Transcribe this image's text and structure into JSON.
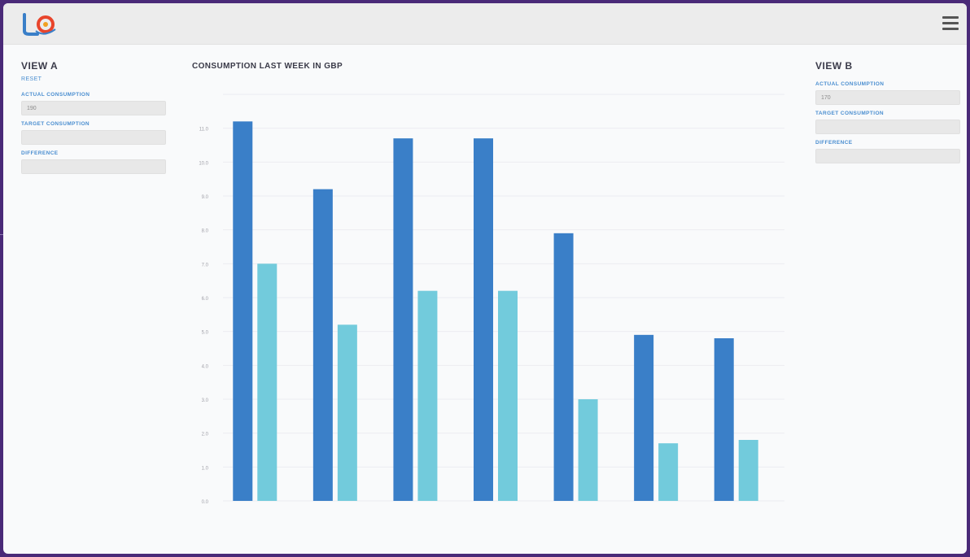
{
  "header": {
    "logo_text": "LOGO"
  },
  "left_panel": {
    "title": "VIEW A",
    "link": "RESET",
    "fields": [
      {
        "label": "ACTUAL CONSUMPTION",
        "value": "190"
      },
      {
        "label": "TARGET CONSUMPTION",
        "value": ""
      },
      {
        "label": "DIFFERENCE",
        "value": ""
      }
    ]
  },
  "right_panel": {
    "title": "VIEW B",
    "link": "",
    "fields": [
      {
        "label": "ACTUAL CONSUMPTION",
        "value": "170"
      },
      {
        "label": "TARGET CONSUMPTION",
        "value": ""
      },
      {
        "label": "DIFFERENCE",
        "value": ""
      }
    ]
  },
  "chart_data": {
    "type": "bar",
    "title": "CONSUMPTION LAST WEEK IN GBP",
    "subtitle": "",
    "categories": [
      "",
      "",
      "",
      "",
      "",
      "",
      ""
    ],
    "ylim": [
      0,
      12
    ],
    "yticks": [
      0,
      1,
      2,
      3,
      4,
      5,
      6,
      7,
      8,
      9,
      10,
      11,
      12
    ],
    "ytick_labels": [
      "0.0",
      "1.0",
      "2.0",
      "3.0",
      "4.0",
      "5.0",
      "6.0",
      "7.0",
      "8.0",
      "9.0",
      "10.0",
      "11.0",
      ""
    ],
    "grid": true,
    "series": [
      {
        "color": "#3a7fc8",
        "values": [
          11.2,
          9.2,
          10.7,
          10.7,
          7.9,
          4.9,
          4.8
        ]
      },
      {
        "color": "#72cbdc",
        "values": [
          7.0,
          5.2,
          6.2,
          6.2,
          3.0,
          1.7,
          1.8
        ]
      }
    ]
  }
}
